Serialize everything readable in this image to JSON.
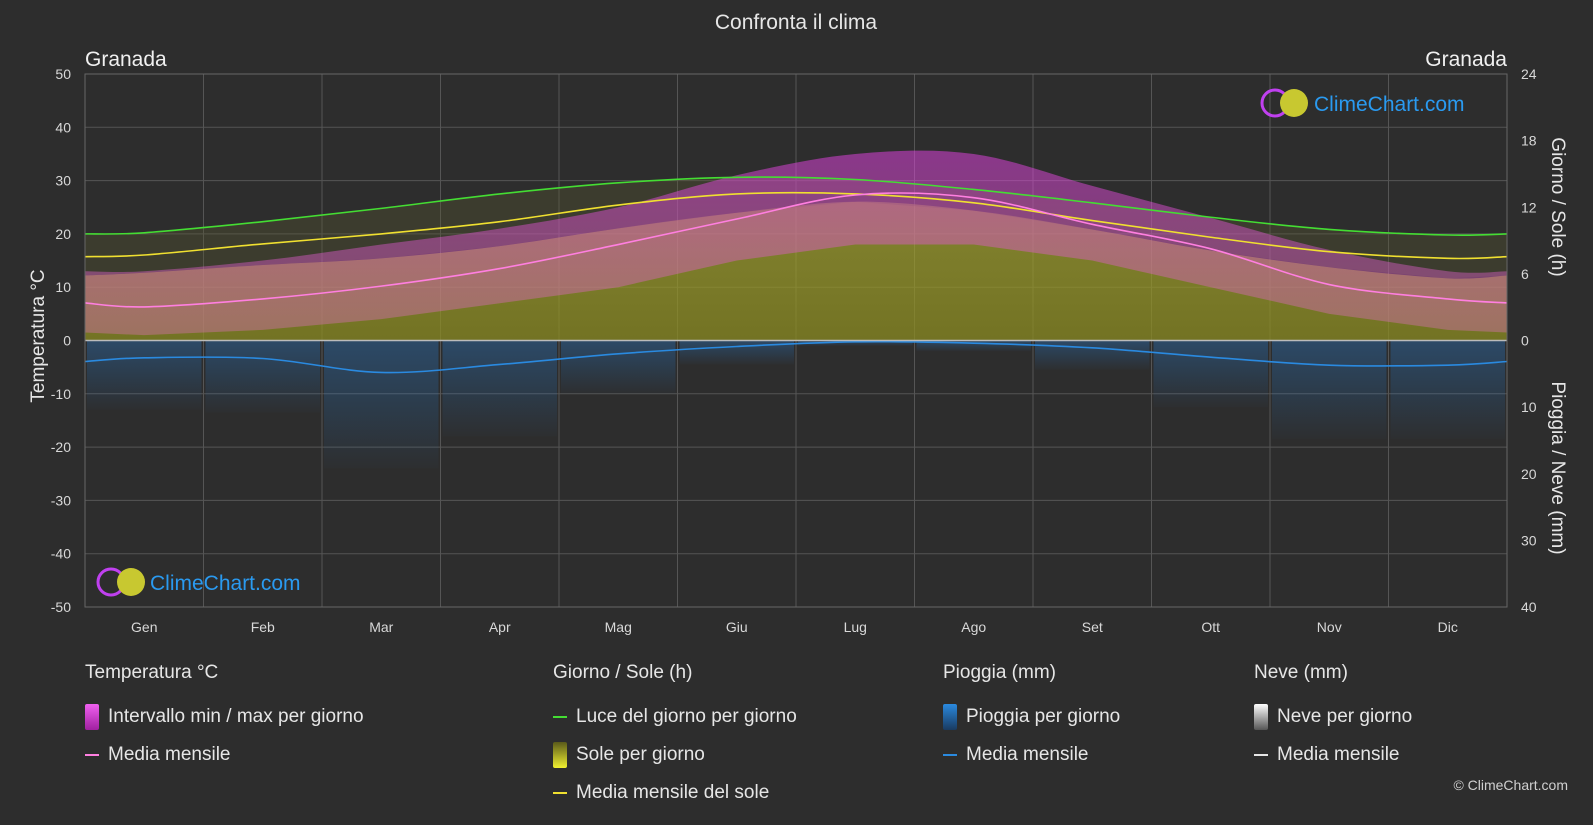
{
  "title": "Confronta il clima",
  "location_left": "Granada",
  "location_right": "Granada",
  "watermark": "ClimeChart.com",
  "copyright": "© ClimeChart.com",
  "colors": {
    "background": "#2d2d2d",
    "grid": "#555555",
    "temp_range": "#e040e0",
    "temp_mean": "#ff7fe0",
    "daylight": "#44dd33",
    "sunshine_fill": "#9a9a2a",
    "sunshine_mean": "#f0e030",
    "rain": "#2a7fd4",
    "rain_mean": "#2a8ae0",
    "snow": "#cccccc",
    "brand_blue": "#2a9af0"
  },
  "legend": {
    "temperature": {
      "title": "Temperatura °C",
      "range_label": "Intervallo min / max per giorno",
      "mean_label": "Media mensile"
    },
    "sun": {
      "title": "Giorno / Sole (h)",
      "daylight_label": "Luce del giorno per giorno",
      "sunshine_label": "Sole per giorno",
      "sunshine_mean_label": "Media mensile del sole"
    },
    "rain": {
      "title": "Pioggia (mm)",
      "daily_label": "Pioggia per giorno",
      "mean_label": "Media mensile"
    },
    "snow": {
      "title": "Neve (mm)",
      "daily_label": "Neve per giorno",
      "mean_label": "Media mensile"
    }
  },
  "chart_data": {
    "type": "area",
    "categories": [
      "Gen",
      "Feb",
      "Mar",
      "Apr",
      "Mag",
      "Giu",
      "Lug",
      "Ago",
      "Set",
      "Ott",
      "Nov",
      "Dic"
    ],
    "y_left": {
      "label": "Temperatura °C",
      "range": [
        -50,
        50
      ],
      "ticks": [
        50,
        40,
        30,
        20,
        10,
        0,
        -10,
        -20,
        -30,
        -40,
        -50
      ]
    },
    "y_right_top": {
      "label": "Giorno / Sole (h)",
      "range": [
        0,
        24
      ],
      "ticks": [
        24,
        18,
        12,
        6,
        0
      ]
    },
    "y_right_bottom": {
      "label": "Pioggia / Neve (mm)",
      "range": [
        0,
        40
      ],
      "ticks": [
        10,
        20,
        30,
        40
      ]
    },
    "grid": true,
    "series": [
      {
        "name": "Intervallo min / max per giorno",
        "axis": "temperature",
        "min": [
          1,
          2,
          4,
          7,
          10,
          15,
          18,
          18,
          15,
          10,
          5,
          2
        ],
        "max": [
          13,
          15,
          18,
          21,
          25,
          31,
          35,
          35,
          29,
          23,
          17,
          13
        ]
      },
      {
        "name": "Media mensile",
        "axis": "temperature",
        "values": [
          6.3,
          7.8,
          10.2,
          13.5,
          18,
          22.8,
          27.3,
          26.8,
          21.8,
          17.2,
          10.5,
          7.8
        ]
      },
      {
        "name": "Luce del giorno per giorno",
        "axis": "hours",
        "values": [
          9.7,
          10.7,
          11.9,
          13.2,
          14.2,
          14.7,
          14.5,
          13.6,
          12.4,
          11.1,
          10.0,
          9.5
        ]
      },
      {
        "name": "Sole per giorno",
        "axis": "hours",
        "values": [
          6.1,
          6.8,
          7.4,
          8.5,
          10.1,
          11.5,
          12.5,
          11.7,
          10.0,
          8.1,
          6.6,
          5.6
        ]
      },
      {
        "name": "Media mensile del sole",
        "axis": "hours",
        "values": [
          7.7,
          8.7,
          9.6,
          10.7,
          12.2,
          13.2,
          13.2,
          12.4,
          10.8,
          9.3,
          8.0,
          7.4
        ]
      },
      {
        "name": "Pioggia - Media mensile",
        "axis": "precip",
        "values": [
          2.6,
          2.7,
          4.8,
          3.6,
          2.0,
          0.9,
          0.2,
          0.4,
          1.1,
          2.5,
          3.7,
          3.7
        ]
      }
    ]
  }
}
